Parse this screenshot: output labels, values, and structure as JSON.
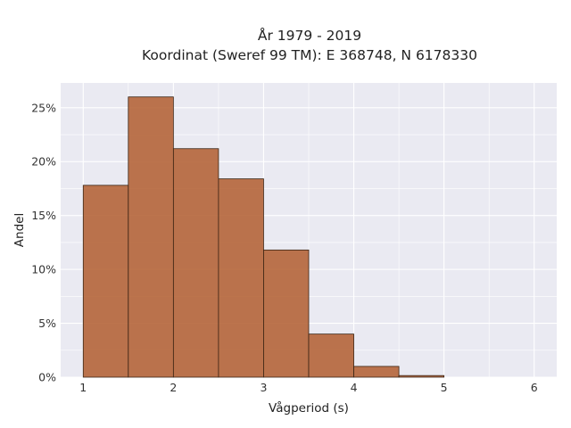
{
  "chart_data": {
    "type": "bar",
    "title_line1": "År 1979 - 2019",
    "title_line2": "Koordinat (Sweref 99 TM): E 368748, N 6178330",
    "xlabel": "Vågperiod (s)",
    "ylabel": "Andel",
    "bin_edges": [
      1,
      1.5,
      2,
      2.5,
      3,
      3.5,
      4,
      4.5,
      5
    ],
    "values": [
      17.8,
      26.0,
      21.2,
      18.4,
      11.8,
      4.0,
      1.0,
      0.15
    ],
    "xlim": [
      0.75,
      6.25
    ],
    "ylim": [
      0,
      27.3
    ],
    "x_ticks": [
      1,
      2,
      3,
      4,
      5,
      6
    ],
    "x_tick_labels": [
      "1",
      "2",
      "3",
      "4",
      "5",
      "6"
    ],
    "y_ticks": [
      0,
      5,
      10,
      15,
      20,
      25
    ],
    "y_tick_labels": [
      "0%",
      "5%",
      "10%",
      "15%",
      "20%",
      "25%"
    ],
    "grid": true,
    "colors": {
      "bar_fill": "#b5653a",
      "bar_edge": "#3a2414",
      "plot_background": "#eaeaf2",
      "grid": "#ffffff"
    }
  }
}
